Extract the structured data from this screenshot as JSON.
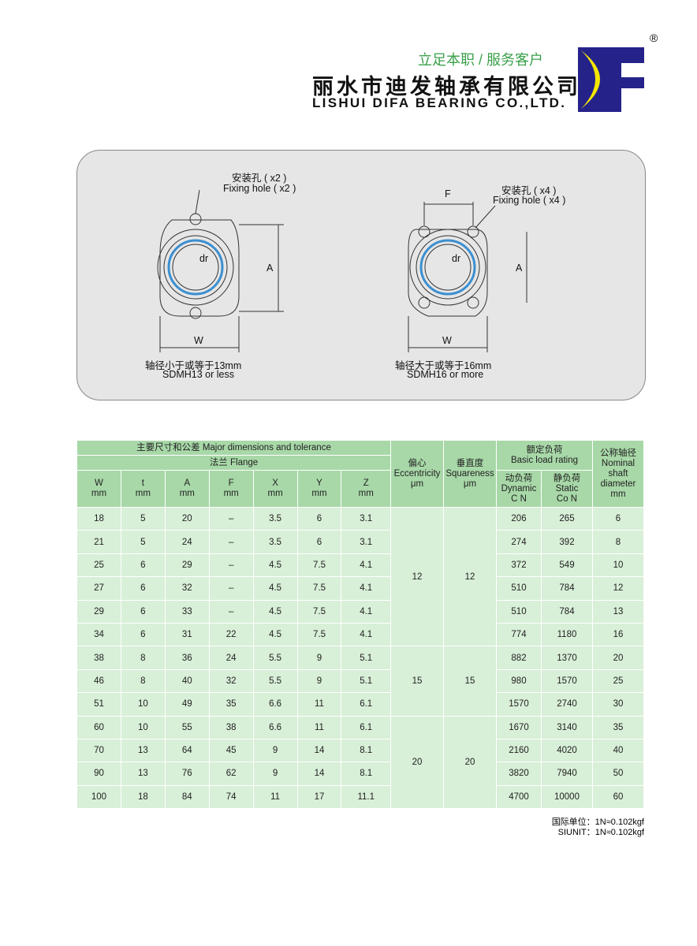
{
  "header": {
    "slogan": "立足本职 / 服务客户",
    "company_cn": "丽水市迪发轴承有限公司",
    "company_en": "LISHUI DIFA BEARING CO.,LTD.",
    "logo_text": "DF",
    "registered": "®",
    "colors": {
      "logo_blue": "#25238a",
      "logo_yellow": "#f5e600",
      "slogan_green": "#3aa04a"
    }
  },
  "diagram": {
    "left": {
      "hole_cn": "安装孔 ( x2 )",
      "hole_en": "Fixing hole ( x2 )",
      "dim_a": "A",
      "dim_w": "W",
      "dim_dr": "dr",
      "caption_cn": "轴径小于或等于13mm",
      "caption_en": "SDMH13 or less"
    },
    "right": {
      "hole_cn": "安装孔 ( x4 )",
      "hole_en": "Fixing hole ( x4 )",
      "dim_f": "F",
      "dim_a": "A",
      "dim_w": "W",
      "dim_dr": "dr",
      "caption_cn": "轴径大于或等于16mm",
      "caption_en": "SDMH16 or more"
    }
  },
  "table": {
    "h_major": "主要尺寸和公差 Major dimensions and tolerance",
    "h_flange": "法兰 Flange",
    "h_ecc": [
      "偏心",
      "Eccentricity",
      "μm"
    ],
    "h_sq": [
      "垂直度",
      "Squareness",
      "μm"
    ],
    "h_load": [
      "额定负荷",
      "Basic load rating"
    ],
    "h_dyn": [
      "动负荷",
      "Dynamic",
      "C N"
    ],
    "h_sta": [
      "静负荷",
      "Static",
      "Co N"
    ],
    "h_nom": [
      "公称轴径",
      "Nominal",
      "shaft",
      "diameter",
      "mm"
    ],
    "cols": [
      [
        "W",
        "mm"
      ],
      [
        "t",
        "mm"
      ],
      [
        "A",
        "mm"
      ],
      [
        "F",
        "mm"
      ],
      [
        "X",
        "mm"
      ],
      [
        "Y",
        "mm"
      ],
      [
        "Z",
        "mm"
      ]
    ],
    "rows": [
      [
        "18",
        "5",
        "20",
        "–",
        "3.5",
        "6",
        "3.1",
        "206",
        "265",
        "6"
      ],
      [
        "21",
        "5",
        "24",
        "–",
        "3.5",
        "6",
        "3.1",
        "274",
        "392",
        "8"
      ],
      [
        "25",
        "6",
        "29",
        "–",
        "4.5",
        "7.5",
        "4.1",
        "372",
        "549",
        "10"
      ],
      [
        "27",
        "6",
        "32",
        "–",
        "4.5",
        "7.5",
        "4.1",
        "510",
        "784",
        "12"
      ],
      [
        "29",
        "6",
        "33",
        "–",
        "4.5",
        "7.5",
        "4.1",
        "510",
        "784",
        "13"
      ],
      [
        "34",
        "6",
        "31",
        "22",
        "4.5",
        "7.5",
        "4.1",
        "774",
        "1180",
        "16"
      ],
      [
        "38",
        "8",
        "36",
        "24",
        "5.5",
        "9",
        "5.1",
        "882",
        "1370",
        "20"
      ],
      [
        "46",
        "8",
        "40",
        "32",
        "5.5",
        "9",
        "5.1",
        "980",
        "1570",
        "25"
      ],
      [
        "51",
        "10",
        "49",
        "35",
        "6.6",
        "11",
        "6.1",
        "1570",
        "2740",
        "30"
      ],
      [
        "60",
        "10",
        "55",
        "38",
        "6.6",
        "11",
        "6.1",
        "1670",
        "3140",
        "35"
      ],
      [
        "70",
        "13",
        "64",
        "45",
        "9",
        "14",
        "8.1",
        "2160",
        "4020",
        "40"
      ],
      [
        "90",
        "13",
        "76",
        "62",
        "9",
        "14",
        "8.1",
        "3820",
        "7940",
        "50"
      ],
      [
        "100",
        "18",
        "84",
        "74",
        "11",
        "17",
        "11.1",
        "4700",
        "10000",
        "60"
      ]
    ],
    "groups": [
      {
        "rows": 6,
        "ecc": "12",
        "sq": "12"
      },
      {
        "rows": 3,
        "ecc": "15",
        "sq": "15"
      },
      {
        "rows": 4,
        "ecc": "20",
        "sq": "20"
      }
    ]
  },
  "notes": [
    "国际单位：1N≈0.102kgf",
    "SIUNIT：1N≈0.102kgf"
  ]
}
